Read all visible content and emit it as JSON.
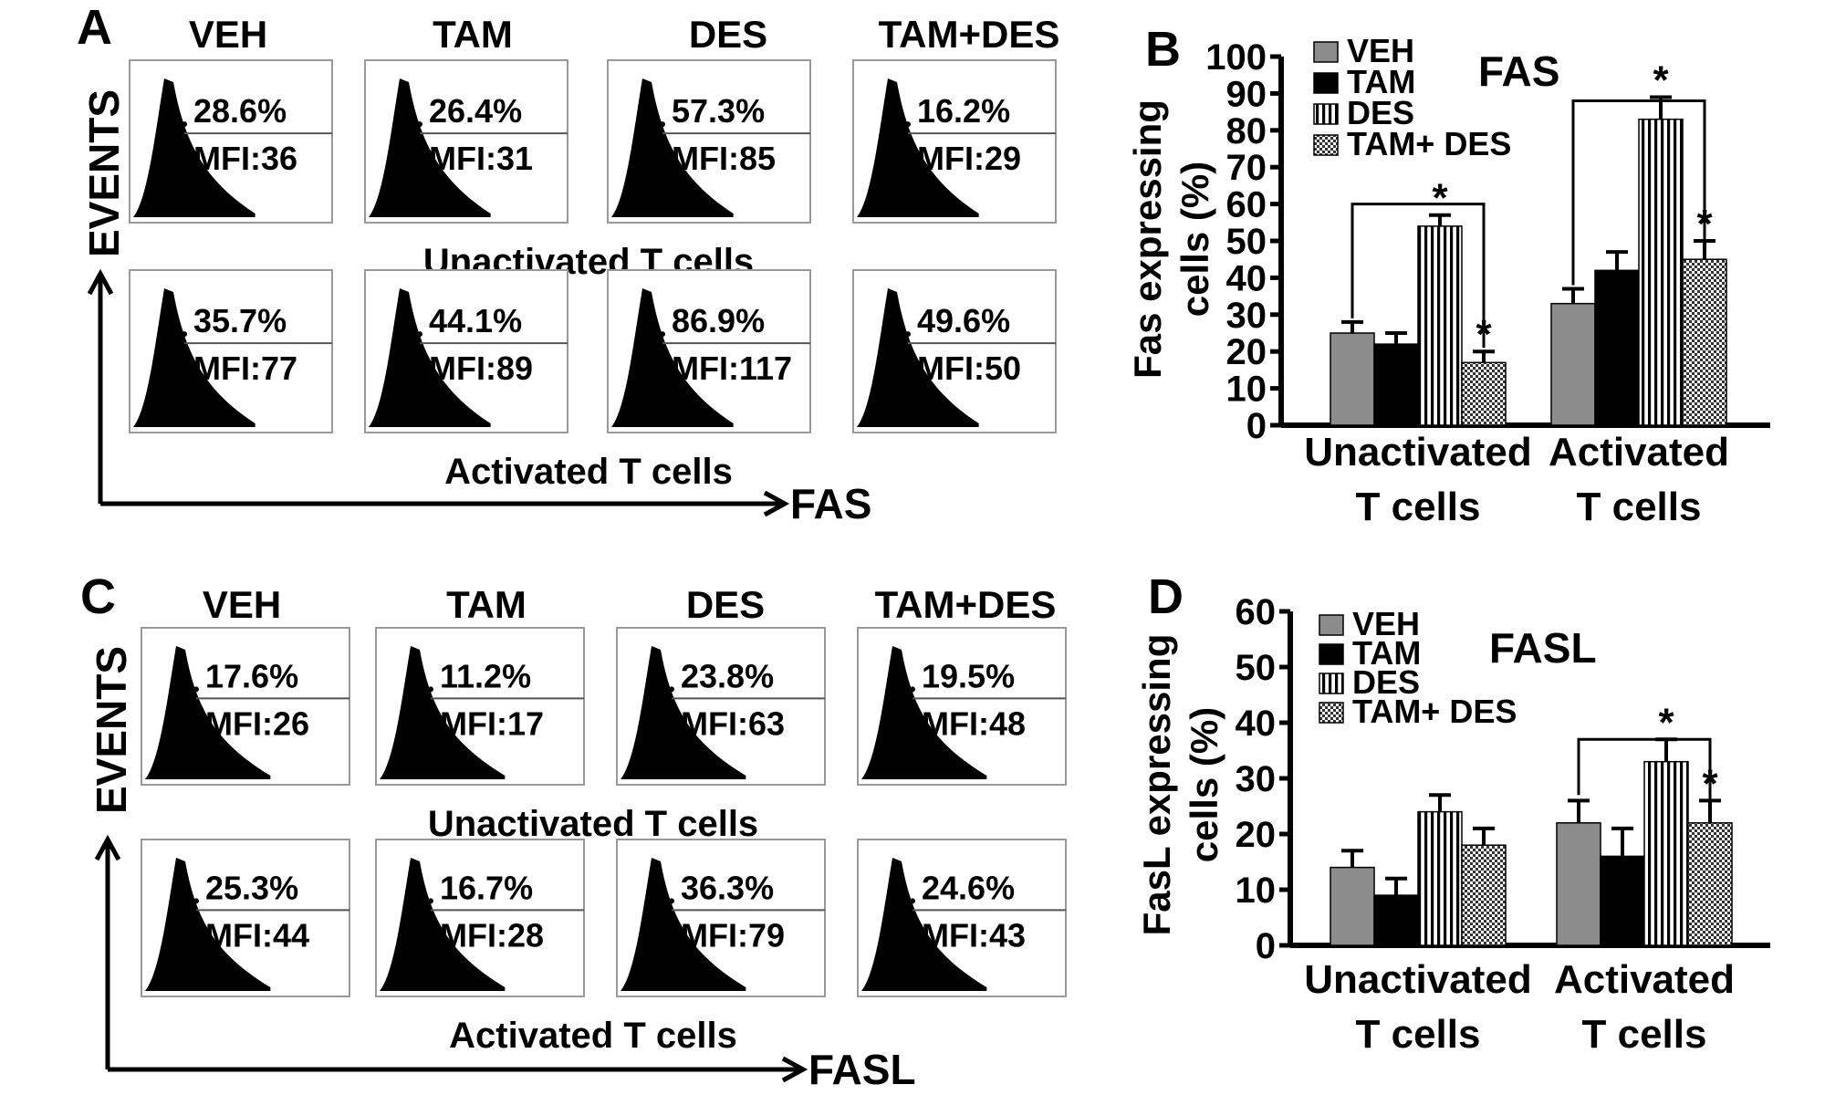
{
  "chart_data": [
    {
      "panel": "A",
      "type": "histogram-grid",
      "marker": "FAS",
      "y_label": "EVENTS",
      "x_label": "FAS",
      "columns": [
        "VEH",
        "TAM",
        "DES",
        "TAM+DES"
      ],
      "rows": [
        {
          "label": "Unactivated T cells",
          "cells": [
            {
              "pct": "28.6%",
              "mfi": "MFI:36"
            },
            {
              "pct": "26.4%",
              "mfi": "MFI:31"
            },
            {
              "pct": "57.3%",
              "mfi": "MFI:85"
            },
            {
              "pct": "16.2%",
              "mfi": "MFI:29"
            }
          ]
        },
        {
          "label": "Activated T cells",
          "cells": [
            {
              "pct": "35.7%",
              "mfi": "MFI:77"
            },
            {
              "pct": "44.1%",
              "mfi": "MFI:89"
            },
            {
              "pct": "86.9%",
              "mfi": "MFI:117"
            },
            {
              "pct": "49.6%",
              "mfi": "MFI:50"
            }
          ]
        }
      ]
    },
    {
      "panel": "B",
      "type": "bar",
      "title": "FAS",
      "ylabel": "Fas expressing cells (%)",
      "ylim": [
        0,
        100
      ],
      "yticks": [
        0,
        10,
        20,
        30,
        40,
        50,
        60,
        70,
        80,
        90,
        100
      ],
      "categories": [
        "Unactivated T cells",
        "Activated T cells"
      ],
      "legend_position": "top-left",
      "series": [
        {
          "name": "VEH",
          "pattern": "gray",
          "values": [
            25,
            33
          ],
          "errors": [
            3,
            4
          ]
        },
        {
          "name": "TAM",
          "pattern": "black",
          "values": [
            22,
            42
          ],
          "errors": [
            3,
            5
          ]
        },
        {
          "name": "DES",
          "pattern": "vertical-stripes",
          "values": [
            54,
            83
          ],
          "errors": [
            3,
            6
          ]
        },
        {
          "name": "TAM+ DES",
          "pattern": "checker",
          "values": [
            17,
            45
          ],
          "errors": [
            3,
            5
          ]
        }
      ],
      "significance": "*"
    },
    {
      "panel": "C",
      "type": "histogram-grid",
      "marker": "FASL",
      "y_label": "EVENTS",
      "x_label": "FASL",
      "columns": [
        "VEH",
        "TAM",
        "DES",
        "TAM+DES"
      ],
      "rows": [
        {
          "label": "Unactivated T cells",
          "cells": [
            {
              "pct": "17.6%",
              "mfi": "MFI:26"
            },
            {
              "pct": "11.2%",
              "mfi": "MFI:17"
            },
            {
              "pct": "23.8%",
              "mfi": "MFI:63"
            },
            {
              "pct": "19.5%",
              "mfi": "MFI:48"
            }
          ]
        },
        {
          "label": "Activated T cells",
          "cells": [
            {
              "pct": "25.3%",
              "mfi": "MFI:44"
            },
            {
              "pct": "16.7%",
              "mfi": "MFI:28"
            },
            {
              "pct": "36.3%",
              "mfi": "MFI:79"
            },
            {
              "pct": "24.6%",
              "mfi": "MFI:43"
            }
          ]
        }
      ]
    },
    {
      "panel": "D",
      "type": "bar",
      "title": "FASL",
      "ylabel": "FasL expressing cells (%)",
      "ylim": [
        0,
        60
      ],
      "yticks": [
        0,
        10,
        20,
        30,
        40,
        50,
        60
      ],
      "categories": [
        "Unactivated T cells",
        "Activated T cells"
      ],
      "legend_position": "top-left",
      "series": [
        {
          "name": "VEH",
          "pattern": "gray",
          "values": [
            14,
            22
          ],
          "errors": [
            3,
            4
          ]
        },
        {
          "name": "TAM",
          "pattern": "black",
          "values": [
            9,
            16
          ],
          "errors": [
            3,
            5
          ]
        },
        {
          "name": "DES",
          "pattern": "vertical-stripes",
          "values": [
            24,
            33
          ],
          "errors": [
            3,
            4
          ]
        },
        {
          "name": "TAM+ DES",
          "pattern": "checker",
          "values": [
            18,
            22
          ],
          "errors": [
            3,
            4
          ]
        }
      ],
      "significance": "*"
    }
  ]
}
